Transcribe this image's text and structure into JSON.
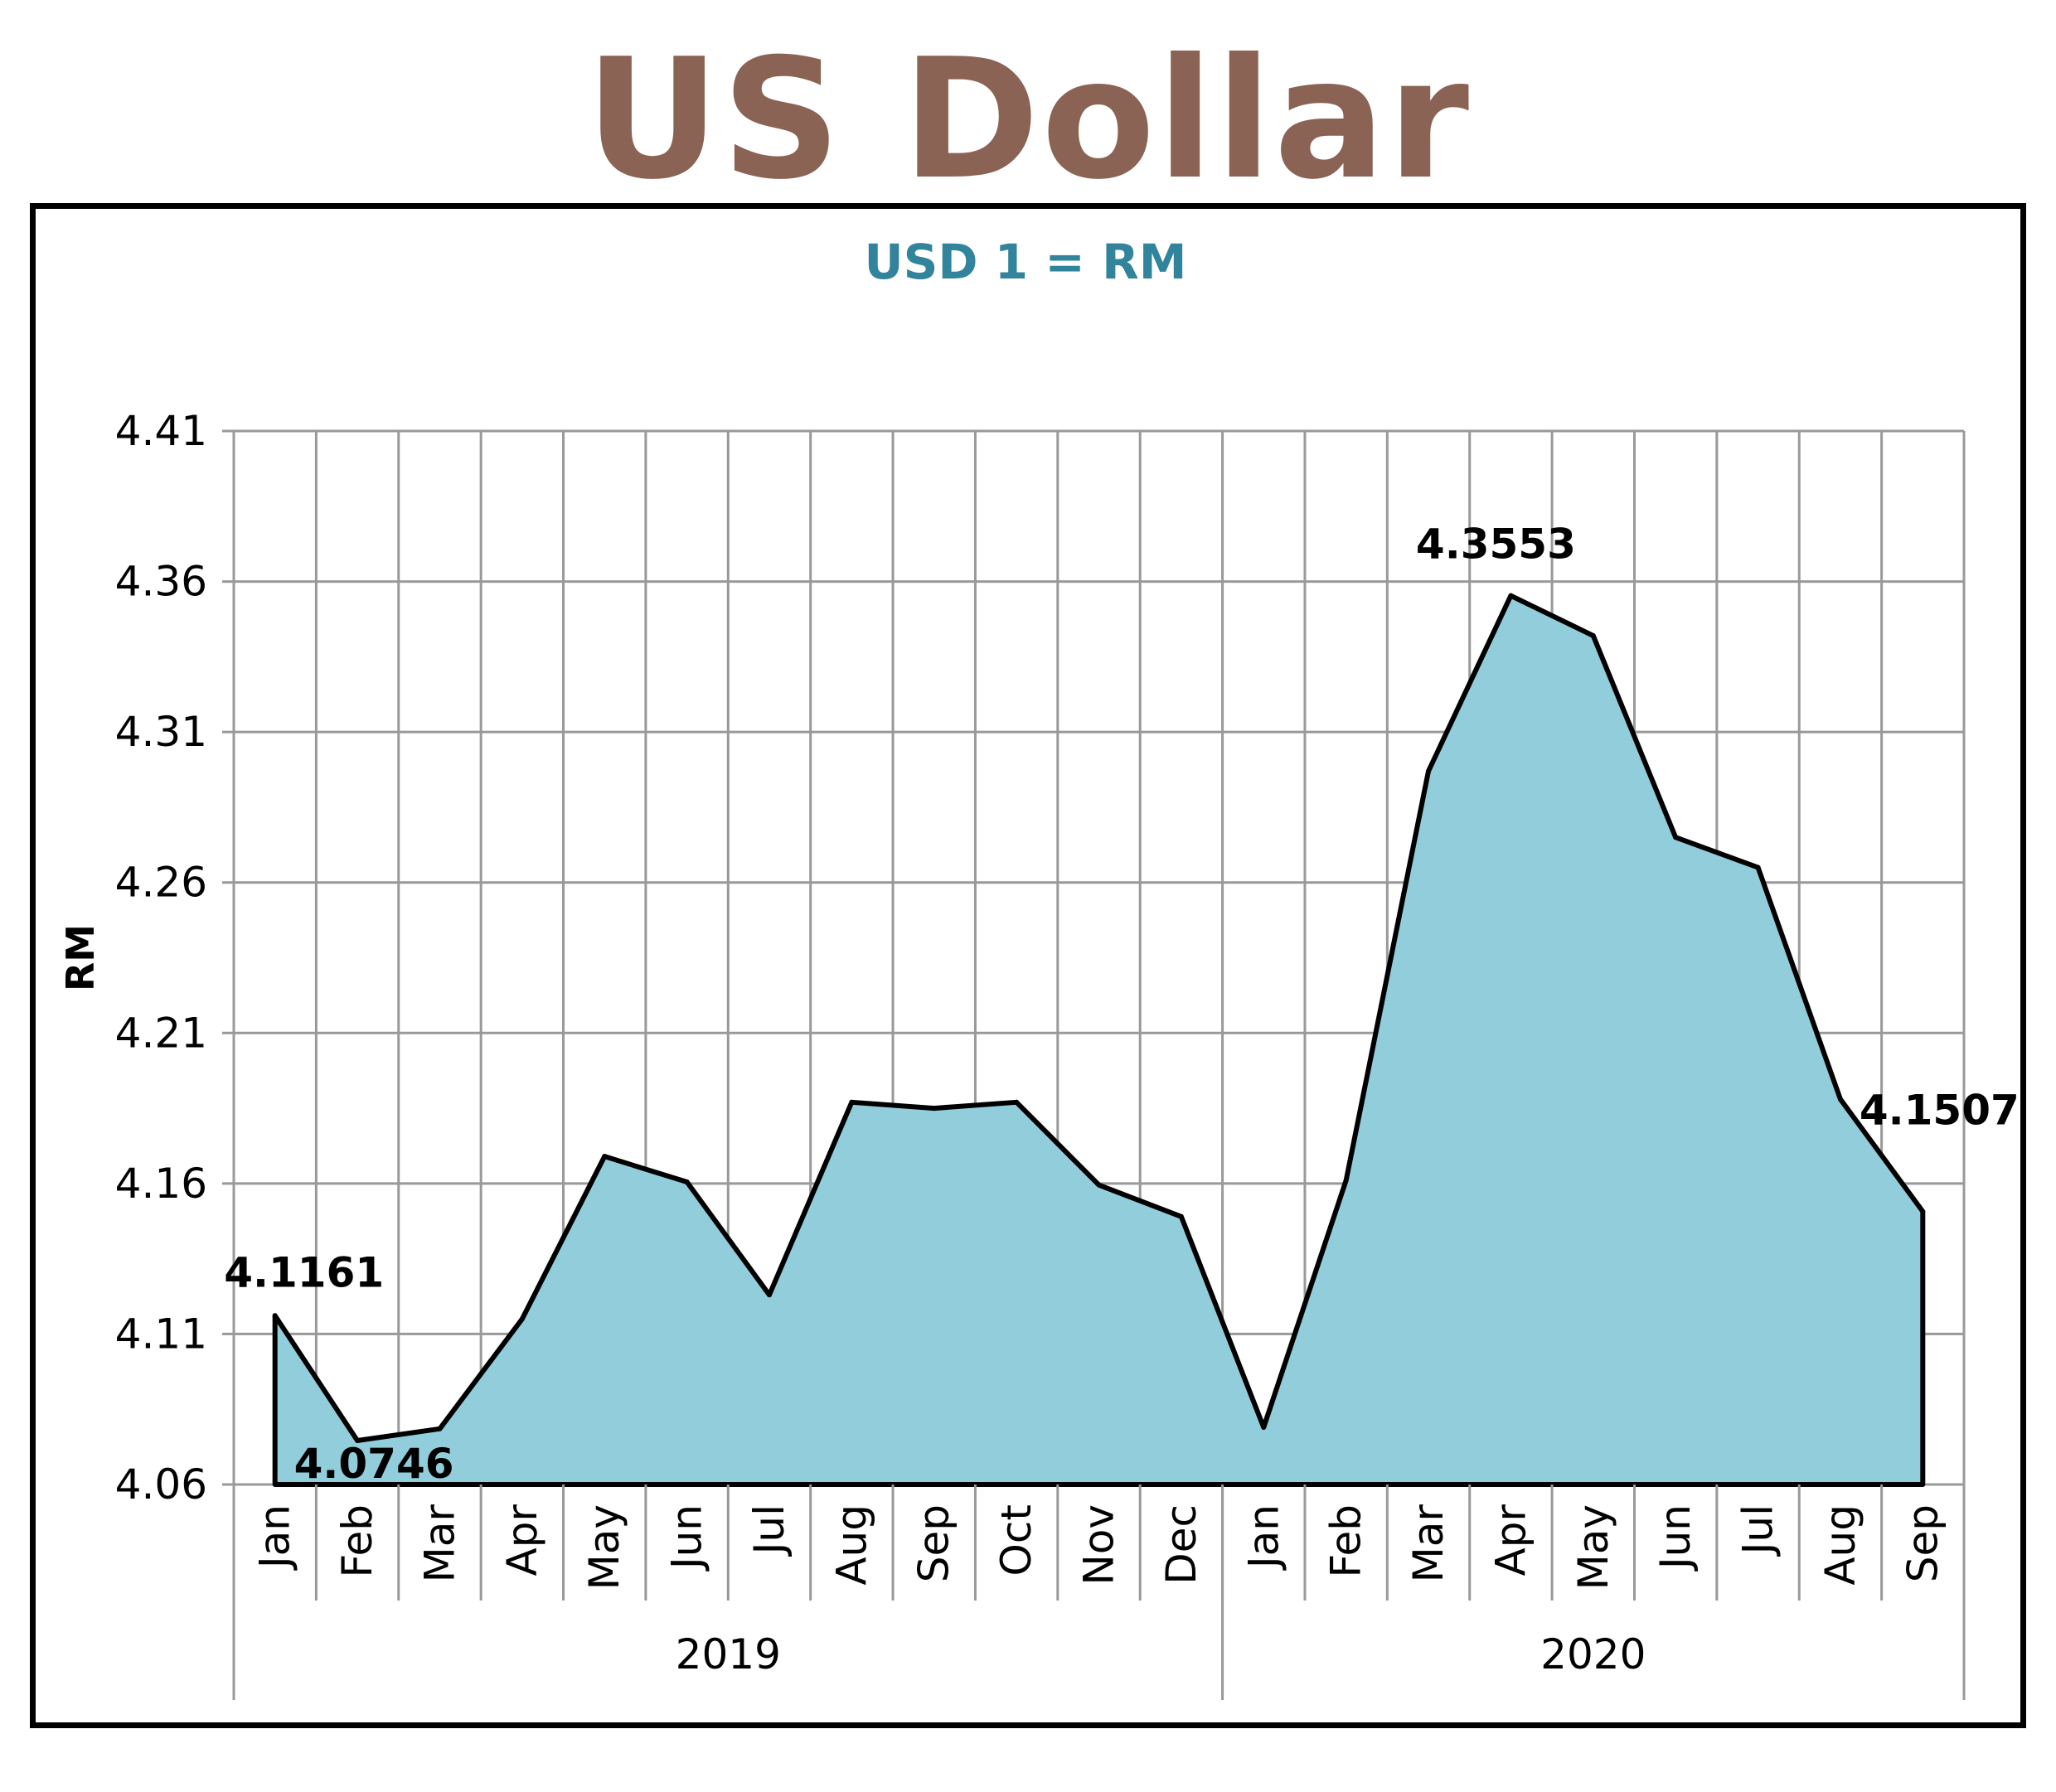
{
  "title": "US Dollar",
  "chart_data": {
    "type": "area",
    "subtitle": "USD 1 = RM",
    "ylabel": "RM",
    "xlabel": "",
    "ylim": [
      4.06,
      4.41
    ],
    "yticks": [
      "4.41",
      "4.36",
      "4.31",
      "4.26",
      "4.21",
      "4.16",
      "4.11",
      "4.06"
    ],
    "grid": true,
    "legend": "none",
    "categories": [
      "Jan",
      "Feb",
      "Mar",
      "Apr",
      "May",
      "Jun",
      "Jul",
      "Aug",
      "Sep",
      "Oct",
      "Nov",
      "Dec",
      "Jan",
      "Feb",
      "Mar",
      "Apr",
      "May",
      "Jun",
      "Jul",
      "Aug",
      "Sep"
    ],
    "groups": [
      {
        "label": "2019",
        "count": 12
      },
      {
        "label": "2020",
        "count": 9
      }
    ],
    "series": [
      {
        "values": [
          4.1161,
          4.0746,
          4.0785,
          4.115,
          4.169,
          4.1605,
          4.123,
          4.187,
          4.185,
          4.187,
          4.1595,
          4.149,
          4.079,
          4.161,
          4.297,
          4.3553,
          4.342,
          4.275,
          4.265,
          4.188,
          4.1507
        ],
        "color": "#92cddc",
        "line_color": "#000000"
      }
    ],
    "data_labels": [
      {
        "index": 0,
        "text": "4.1161"
      },
      {
        "index": 1,
        "text": "4.0746"
      },
      {
        "index": 15,
        "text": "4.3553"
      },
      {
        "index": 20,
        "text": "4.1507"
      }
    ]
  }
}
